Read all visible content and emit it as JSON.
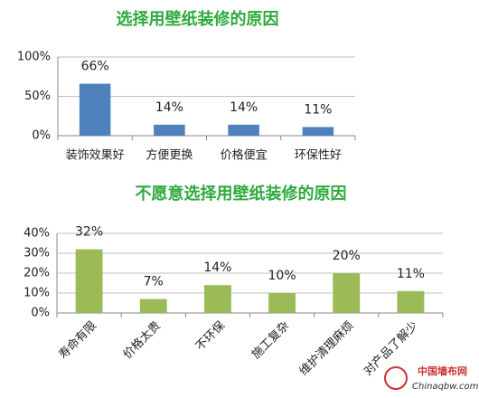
{
  "chart_data": [
    {
      "type": "bar",
      "title": "选择用壁纸装修的原因",
      "categories": [
        "装饰效果好",
        "方便更换",
        "价格便宜",
        "环保性好"
      ],
      "values": [
        66,
        14,
        14,
        11
      ],
      "value_labels": [
        "66%",
        "14%",
        "14%",
        "11%"
      ],
      "color": "#4f81bd",
      "ylim": [
        0,
        100
      ],
      "yticks": [
        {
          "value": 0,
          "label": "0%"
        },
        {
          "value": 50,
          "label": "50%"
        },
        {
          "value": 100,
          "label": "100%"
        }
      ],
      "grid": true
    },
    {
      "type": "bar",
      "title": "不愿意选择用壁纸装修的原因",
      "categories": [
        "寿命有限",
        "价格太贵",
        "不环保",
        "施工复杂",
        "维护清理麻烦",
        "对产品了解少"
      ],
      "values": [
        32,
        7,
        14,
        10,
        20,
        11
      ],
      "value_labels": [
        "32%",
        "7%",
        "14%",
        "10%",
        "20%",
        "11%"
      ],
      "color": "#9bbb59",
      "ylim": [
        0,
        40
      ],
      "yticks": [
        {
          "value": 0,
          "label": "0%"
        },
        {
          "value": 10,
          "label": "10%"
        },
        {
          "value": 20,
          "label": "20%"
        },
        {
          "value": 30,
          "label": "30%"
        },
        {
          "value": 40,
          "label": "40%"
        }
      ],
      "grid": true
    }
  ],
  "watermark": {
    "name": "中国墙布网",
    "url": "Chinaqbw.com"
  }
}
